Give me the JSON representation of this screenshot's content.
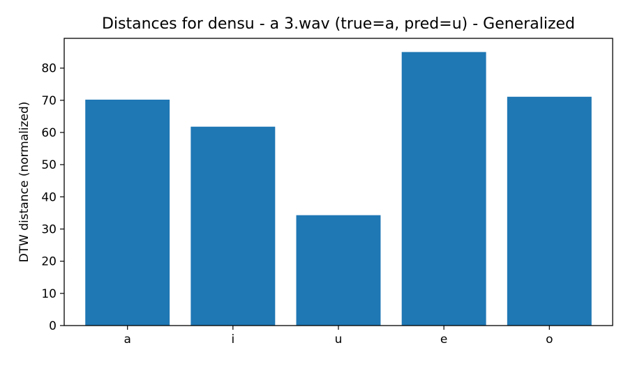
{
  "chart_data": {
    "type": "bar",
    "title": "Distances for densu - a 3.wav (true=a, pred=u) - Generalized",
    "xlabel": "",
    "ylabel": "DTW distance (normalized)",
    "categories": [
      "a",
      "i",
      "u",
      "e",
      "o"
    ],
    "values": [
      70.2,
      61.8,
      34.3,
      85.0,
      71.1
    ],
    "ylim": [
      0,
      89.25
    ],
    "yticks": [
      0,
      10,
      20,
      30,
      40,
      50,
      60,
      70,
      80
    ],
    "grid": false,
    "bar_color": "#1f77b4"
  }
}
